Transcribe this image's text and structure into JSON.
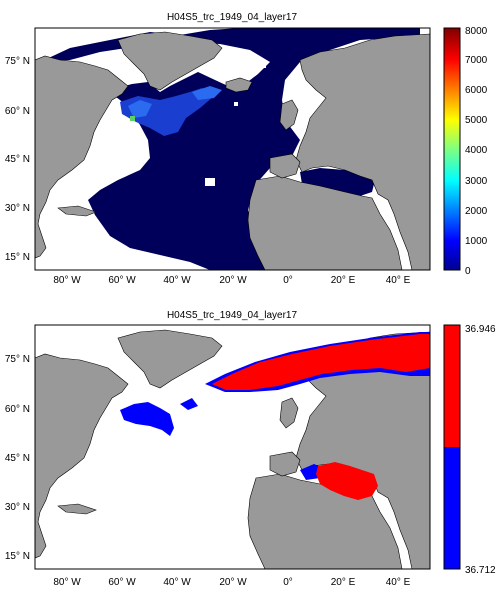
{
  "panels": [
    {
      "title": "H04S5_trc_1949_04_layer17",
      "colorbar": {
        "type": "jet",
        "ticks": [
          "8000",
          "7000",
          "6000",
          "5000",
          "4000",
          "3000",
          "2000",
          "1000",
          "0"
        ],
        "vmin": 0,
        "vmax": 8000
      },
      "ylabels": [
        "75° N",
        "60° N",
        "45° N",
        "30° N",
        "15° N"
      ],
      "xlabels": [
        "80° W",
        "60° W",
        "40° W",
        "20° W",
        "0°",
        "20° E",
        "40° E"
      ]
    },
    {
      "title": "H04S5_trc_1949_04_layer17",
      "colorbar": {
        "type": "binary",
        "top_label": "36.946",
        "bottom_label": "36.712",
        "colors": [
          "#ff0000",
          "#0000ff"
        ]
      },
      "ylabels": [
        "75° N",
        "60° N",
        "45° N",
        "30° N",
        "15° N"
      ],
      "xlabels": [
        "80° W",
        "60° W",
        "40° W",
        "20° W",
        "0°",
        "20° E",
        "40° E"
      ]
    }
  ],
  "colors": {
    "land": "#999999",
    "ocean_field": "#00005a",
    "nodata": "#ffffff",
    "red": "#ff0000",
    "blue": "#0000ff"
  }
}
